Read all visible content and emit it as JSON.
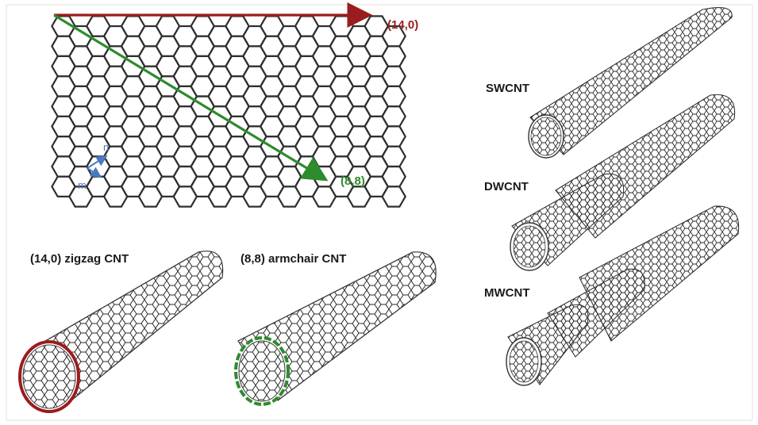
{
  "labels": {
    "zigzag_vector": "(14,0)",
    "armchair_vector": "(8,8)",
    "unit_n": "n",
    "unit_m": "m",
    "zigzag_title": "(14,0) zigzag CNT",
    "armchair_title": "(8,8) armchair CNT",
    "swcnt": "SWCNT",
    "dwcnt": "DWCNT",
    "mwcnt": "MWCNT"
  },
  "colors": {
    "zigzag": "#9b1c1c",
    "armchair": "#2e8b2e",
    "unit_vectors": "#4a78c0",
    "lattice": "#2f2f2f"
  }
}
